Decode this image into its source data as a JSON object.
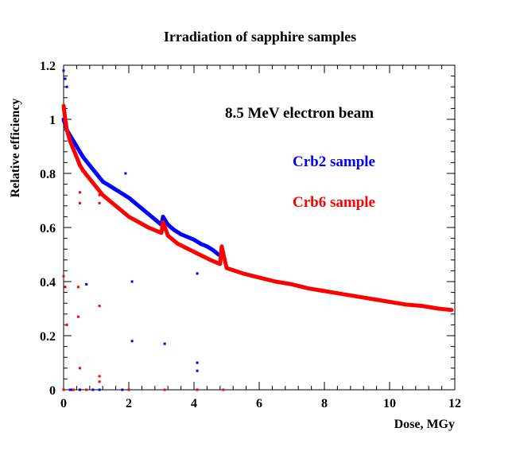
{
  "chart_data": {
    "type": "scatter",
    "title": "Irradiation of sapphire samples",
    "xlabel": "Dose, MGy",
    "ylabel": "Relative efficiency",
    "xlim": [
      0,
      12
    ],
    "ylim": [
      0,
      1.2
    ],
    "xticks": [
      0,
      2,
      4,
      6,
      8,
      10,
      12
    ],
    "yticks": [
      0,
      0.2,
      0.4,
      0.6,
      0.8,
      1,
      1.2
    ],
    "xtick_labels": [
      "0",
      "2",
      "4",
      "6",
      "8",
      "10",
      "12"
    ],
    "ytick_labels": [
      "0",
      "0.2",
      "0.4",
      "0.6",
      "0.8",
      "1",
      "1.2"
    ],
    "grid": false,
    "annotations": [
      {
        "text": "8.5 MeV electron beam",
        "color": "#000000"
      },
      {
        "text": "Crb2 sample",
        "color": "#0000ff"
      },
      {
        "text": "Crb6 sample",
        "color": "#ff0000"
      }
    ],
    "series": [
      {
        "name": "Crb2 sample",
        "color": "#0000ff",
        "x": [
          0.0,
          0.05,
          0.1,
          0.2,
          0.3,
          0.4,
          0.5,
          0.6,
          0.8,
          1.0,
          1.2,
          1.4,
          1.6,
          1.8,
          2.0,
          2.2,
          2.4,
          2.6,
          2.8,
          3.0,
          3.05,
          3.2,
          3.4,
          3.6,
          3.8,
          4.0,
          4.2,
          4.4,
          4.6,
          4.75
        ],
        "y": [
          1.0,
          0.98,
          0.96,
          0.94,
          0.92,
          0.9,
          0.88,
          0.86,
          0.83,
          0.8,
          0.77,
          0.755,
          0.74,
          0.725,
          0.71,
          0.69,
          0.67,
          0.65,
          0.63,
          0.61,
          0.64,
          0.61,
          0.59,
          0.575,
          0.565,
          0.555,
          0.54,
          0.53,
          0.515,
          0.5
        ]
      },
      {
        "name": "Crb6 sample",
        "color": "#ff0000",
        "x": [
          0.0,
          0.05,
          0.1,
          0.2,
          0.3,
          0.4,
          0.5,
          0.6,
          0.8,
          1.0,
          1.2,
          1.5,
          1.8,
          2.0,
          2.3,
          2.6,
          3.0,
          3.05,
          3.2,
          3.5,
          4.0,
          4.5,
          4.8,
          4.85,
          5.0,
          5.5,
          6.0,
          6.5,
          7.0,
          7.5,
          8.0,
          8.5,
          9.0,
          9.5,
          10.0,
          10.5,
          11.0,
          11.5,
          11.9
        ],
        "y": [
          1.05,
          1.0,
          0.96,
          0.92,
          0.89,
          0.86,
          0.83,
          0.81,
          0.78,
          0.75,
          0.72,
          0.69,
          0.66,
          0.64,
          0.62,
          0.6,
          0.58,
          0.62,
          0.57,
          0.54,
          0.51,
          0.48,
          0.465,
          0.53,
          0.45,
          0.43,
          0.415,
          0.4,
          0.39,
          0.375,
          0.365,
          0.355,
          0.345,
          0.335,
          0.325,
          0.315,
          0.31,
          0.3,
          0.295
        ]
      }
    ],
    "outliers": [
      {
        "name": "Crb2 sample",
        "color": "#0000ff",
        "x": [
          0.0,
          0.05,
          0.1,
          0.25,
          0.7,
          1.1,
          1.9,
          2.1,
          2.1,
          3.1,
          4.1,
          4.1,
          4.1,
          4.1,
          0.2,
          0.5,
          0.9,
          1.8
        ],
        "y": [
          1.18,
          1.15,
          1.12,
          0.0,
          0.39,
          0.0,
          0.8,
          0.4,
          0.18,
          0.17,
          0.43,
          0.1,
          0.07,
          0.0,
          0.0,
          0.0,
          0.0,
          0.0
        ]
      },
      {
        "name": "Crb6 sample",
        "color": "#ff0000",
        "x": [
          0.0,
          0.05,
          0.1,
          0.45,
          0.45,
          0.5,
          0.5,
          0.5,
          1.1,
          1.1,
          1.1,
          1.1,
          1.1,
          2.0,
          3.1,
          4.1,
          4.9,
          0.0,
          0.3,
          0.7
        ],
        "y": [
          0.42,
          0.38,
          0.24,
          0.38,
          0.27,
          0.73,
          0.69,
          0.08,
          0.31,
          0.05,
          0.03,
          0.72,
          0.69,
          0.0,
          0.0,
          0.0,
          0.0,
          0.0,
          0.0,
          0.0
        ]
      }
    ]
  }
}
